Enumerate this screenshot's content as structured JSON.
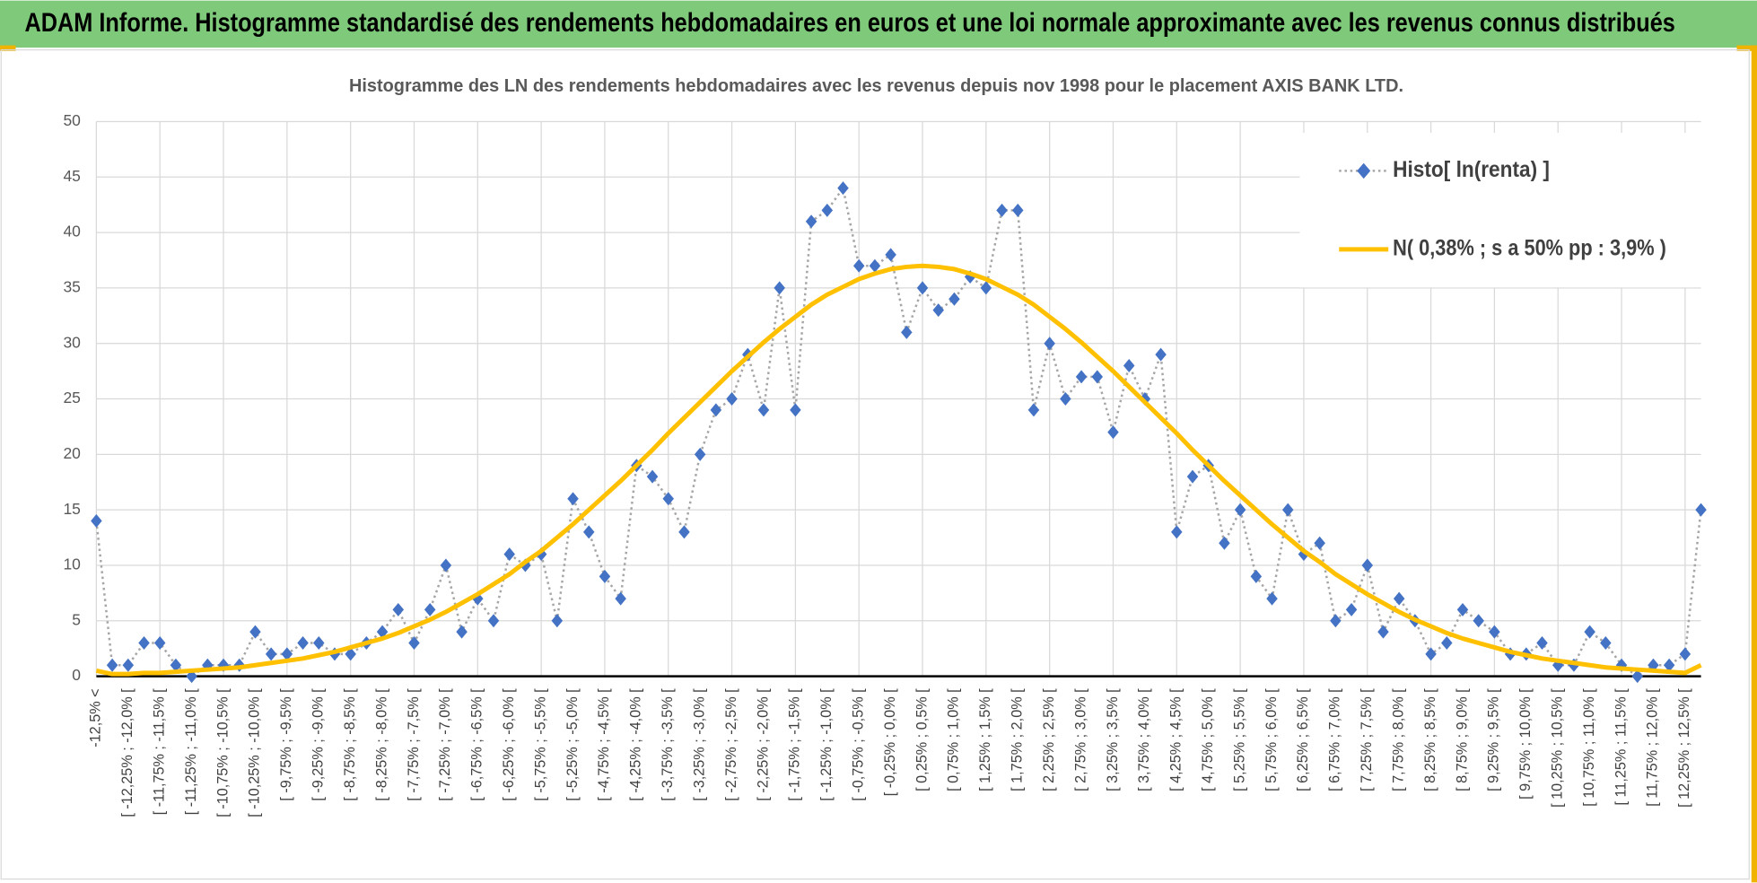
{
  "header": {
    "title": "ADAM Informe. Histogramme standardisé des rendements hebdomadaires en euros et une loi normale approximante avec les revenus connus distribués"
  },
  "chart_data": {
    "type": "line",
    "title": "Histogramme  des LN des rendements  hebdomadaires avec les revenus depuis nov 1998 pour le placement AXIS BANK LTD.",
    "categories": [
      "-12,5% <",
      null,
      "[ -12,25% ; -12,0% [",
      null,
      "[ -11,75% ; -11,5% [",
      null,
      "[ -11,25% ; -11,0% [",
      null,
      "[ -10,75% ; -10,5% [",
      null,
      "[ -10,25% ; -10,0% [",
      null,
      "[ -9,75% ; -9,5% [",
      null,
      "[ -9,25% ; -9,0% [",
      null,
      "[ -8,75% ; -8,5% [",
      null,
      "[ -8,25% ; -8,0% [",
      null,
      "[ -7,75% ; -7,5% [",
      null,
      "[ -7,25% ; -7,0% [",
      null,
      "[ -6,75% ; -6,5% [",
      null,
      "[ -6,25% ; -6,0% [",
      null,
      "[ -5,75% ; -5,5% [",
      null,
      "[ -5,25% ; -5,0% [",
      null,
      "[ -4,75% ; -4,5% [",
      null,
      "[ -4,25% ; -4,0% [",
      null,
      "[ -3,75% ; -3,5% [",
      null,
      "[ -3,25% ; -3,0% [",
      null,
      "[ -2,75% ; -2,5% [",
      null,
      "[ -2,25% ; -2,0% [",
      null,
      "[ -1,75% ; -1,5% [",
      null,
      "[ -1,25% ; -1,0% [",
      null,
      "[ -0,75% ; -0,5% [",
      null,
      "[ -0,25% ; 0,0% [",
      null,
      "[ 0,25% ; 0,5% [",
      null,
      "[ 0,75% ; 1,0% [",
      null,
      "[ 1,25% ; 1,5% [",
      null,
      "[ 1,75% ; 2,0% [",
      null,
      "[ 2,25% ; 2,5% [",
      null,
      "[ 2,75% ; 3,0% [",
      null,
      "[ 3,25% ; 3,5% [",
      null,
      "[ 3,75% ; 4,0% [",
      null,
      "[ 4,25% ; 4,5% [",
      null,
      "[ 4,75% ; 5,0% [",
      null,
      "[ 5,25% ; 5,5% [",
      null,
      "[ 5,75% ; 6,0% [",
      null,
      "[ 6,25% ; 6,5% [",
      null,
      "[ 6,75% ; 7,0% [",
      null,
      "[ 7,25% ; 7,5% [",
      null,
      "[ 7,75% ; 8,0% [",
      null,
      "[ 8,25% ; 8,5% [",
      null,
      "[ 8,75% ; 9,0% [",
      null,
      "[ 9,25% ; 9,5% [",
      null,
      "[ 9,75% ; 10,0% [",
      null,
      "[ 10,25% ; 10,5% [",
      null,
      "[ 10,75% ; 11,0% [",
      null,
      "[ 11,25% ; 11,5% [",
      null,
      "[ 11,75% ; 12,0% [",
      null,
      "[ 12,25% ; 12,5% [",
      null
    ],
    "series": [
      {
        "name": "Histo[ ln(renta) ]",
        "color": "#4472c4",
        "line_color": "#a6a6a6",
        "marker": "diamond",
        "values": [
          14,
          1,
          1,
          3,
          3,
          1,
          0,
          1,
          1,
          1,
          4,
          2,
          2,
          3,
          3,
          2,
          2,
          3,
          4,
          6,
          3,
          6,
          10,
          4,
          7,
          5,
          11,
          10,
          11,
          5,
          16,
          13,
          9,
          7,
          19,
          18,
          16,
          13,
          20,
          24,
          25,
          29,
          24,
          35,
          24,
          41,
          42,
          44,
          37,
          37,
          38,
          31,
          35,
          33,
          34,
          36,
          35,
          42,
          42,
          24,
          30,
          25,
          27,
          27,
          22,
          28,
          25,
          29,
          13,
          18,
          19,
          12,
          15,
          9,
          7,
          15,
          11,
          12,
          5,
          6,
          10,
          4,
          7,
          5,
          2,
          3,
          6,
          5,
          4,
          2,
          2,
          3,
          1,
          1,
          4,
          3,
          1,
          0,
          1,
          1,
          2,
          15
        ]
      },
      {
        "name": "N( 0,38% ; s a 50% pp : 3,9% )",
        "color": "#ffc000",
        "values": [
          0.5,
          0.2,
          0.2,
          0.3,
          0.3,
          0.4,
          0.5,
          0.6,
          0.7,
          0.8,
          1.0,
          1.2,
          1.4,
          1.6,
          1.9,
          2.2,
          2.6,
          3.0,
          3.4,
          3.9,
          4.5,
          5.1,
          5.8,
          6.6,
          7.4,
          8.3,
          9.2,
          10.3,
          11.3,
          12.5,
          13.7,
          15.0,
          16.3,
          17.6,
          19.0,
          20.4,
          21.9,
          23.3,
          24.7,
          26.1,
          27.5,
          28.8,
          30.1,
          31.3,
          32.4,
          33.5,
          34.4,
          35.1,
          35.8,
          36.3,
          36.7,
          36.9,
          37.0,
          36.9,
          36.7,
          36.3,
          35.8,
          35.1,
          34.4,
          33.5,
          32.4,
          31.3,
          30.1,
          28.8,
          27.5,
          26.1,
          24.7,
          23.3,
          21.9,
          20.4,
          19.0,
          17.6,
          16.3,
          15.0,
          13.7,
          12.5,
          11.3,
          10.3,
          9.2,
          8.3,
          7.4,
          6.6,
          5.8,
          5.1,
          4.5,
          3.9,
          3.4,
          3.0,
          2.6,
          2.2,
          1.9,
          1.6,
          1.4,
          1.2,
          1.0,
          0.8,
          0.7,
          0.6,
          0.5,
          0.4,
          0.3,
          1.0
        ]
      }
    ],
    "ylim": [
      0,
      50
    ],
    "yticks": [
      0,
      5,
      10,
      15,
      20,
      25,
      30,
      35,
      40,
      45,
      50
    ],
    "grid": true,
    "legend": "top-right"
  }
}
